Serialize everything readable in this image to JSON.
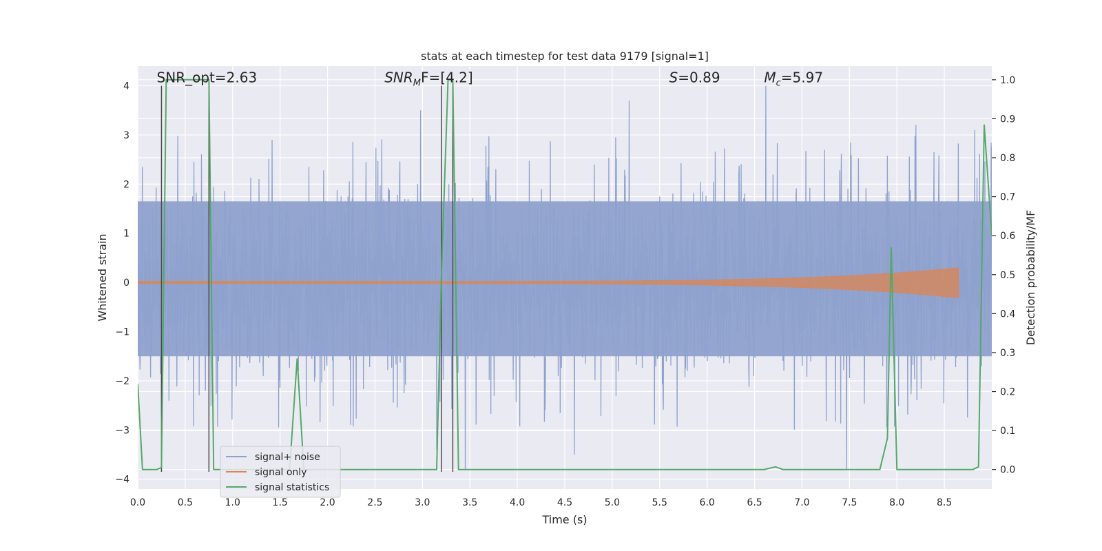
{
  "chart_data": {
    "type": "line",
    "title": "stats at each timestep for test data 9179 [signal=1]",
    "xlabel": "Time (s)",
    "ylabel": "Whitened strain",
    "y2label": "Detection probability/MF",
    "xlim": [
      0,
      9.0
    ],
    "ylim": [
      -4.2,
      4.4
    ],
    "y2lim": [
      -0.05,
      1.035
    ],
    "xticks": [
      0.0,
      0.5,
      1.0,
      1.5,
      2.0,
      2.5,
      3.0,
      3.5,
      4.0,
      4.5,
      5.0,
      5.5,
      6.0,
      6.5,
      7.0,
      7.5,
      8.0,
      8.5
    ],
    "xtick_labels": [
      "0.0",
      "0.5",
      "1.0",
      "1.5",
      "2.0",
      "2.5",
      "3.0",
      "3.5",
      "4.0",
      "4.5",
      "5.0",
      "5.5",
      "6.0",
      "6.5",
      "7.0",
      "7.5",
      "8.0",
      "8.5"
    ],
    "yticks": [
      -4,
      -3,
      -2,
      -1,
      0,
      1,
      2,
      3,
      4
    ],
    "ytick_labels": [
      "−4",
      "−3",
      "−2",
      "−1",
      "0",
      "1",
      "2",
      "3",
      "4"
    ],
    "y2ticks": [
      0.0,
      0.1,
      0.2,
      0.3,
      0.4,
      0.5,
      0.6,
      0.7,
      0.8,
      0.9,
      1.0
    ],
    "y2tick_labels": [
      "0.0",
      "0.1",
      "0.2",
      "0.3",
      "0.4",
      "0.5",
      "0.6",
      "0.7",
      "0.8",
      "0.9",
      "1.0"
    ],
    "grid": true,
    "legend_position": "lower-left",
    "annotations": [
      {
        "text": "SNR_opt=2.63",
        "x": 0.2,
        "y": 4.1,
        "style": "plain"
      },
      {
        "text_main": "SNR",
        "text_sub": "M",
        "text_rest": "F=[4.2]",
        "x": 2.6,
        "y": 4.1,
        "style": "italic-sub"
      },
      {
        "text_main": "S",
        "text_sub": "",
        "text_rest": "=0.89",
        "x": 5.6,
        "y": 4.1,
        "style": "italic-sub"
      },
      {
        "text_main": "M",
        "text_sub": "c",
        "text_rest": "=5.97",
        "x": 6.6,
        "y": 4.1,
        "style": "italic-sub"
      }
    ],
    "vertical_markers": [
      0.25,
      0.75,
      3.2,
      3.32
    ],
    "marker_range": [
      -3.85,
      4.0
    ],
    "series": [
      {
        "name": "signal+ noise",
        "color": "#8fa2cd",
        "kind": "noise",
        "band": [
          -1.5,
          1.65
        ],
        "typical_peak": 2.6,
        "max_peak": 4.0,
        "notable_peaks": [
          {
            "x": 2.98,
            "y": 3.5
          },
          {
            "x": 5.18,
            "y": 3.7
          },
          {
            "x": 6.62,
            "y": 4.0
          },
          {
            "x": 8.2,
            "y": 3.2
          },
          {
            "x": 8.82,
            "y": 3.1
          },
          {
            "x": 3.45,
            "y": -3.8
          },
          {
            "x": 4.6,
            "y": -3.5
          },
          {
            "x": 7.47,
            "y": -3.8
          },
          {
            "x": 0.25,
            "y": -2.7
          },
          {
            "x": 3.15,
            "y": -3.4
          }
        ]
      },
      {
        "name": "signal only",
        "color": "#dd8452",
        "kind": "chirp",
        "start": 0.0,
        "end": 8.65,
        "amplitude_start": 0.02,
        "amplitude_end": 0.3
      },
      {
        "name": "signal statistics",
        "color": "#55a868",
        "kind": "line",
        "axis": "right",
        "x": [
          0.0,
          0.05,
          0.2,
          0.25,
          0.3,
          0.35,
          0.7,
          0.75,
          0.8,
          1.6,
          1.68,
          1.75,
          3.15,
          3.2,
          3.27,
          3.32,
          3.38,
          6.6,
          6.72,
          6.8,
          7.82,
          7.9,
          7.94,
          8.0,
          8.8,
          8.86,
          8.92,
          9.0
        ],
        "y": [
          0.22,
          0.0,
          0.0,
          0.005,
          1.0,
          1.0,
          1.0,
          1.0,
          0.0,
          0.0,
          0.285,
          0.0,
          0.0,
          0.5,
          1.0,
          1.0,
          0.0,
          0.0,
          0.007,
          0.0,
          0.0,
          0.08,
          0.57,
          0.0,
          0.0,
          0.007,
          0.885,
          0.6
        ]
      }
    ]
  }
}
